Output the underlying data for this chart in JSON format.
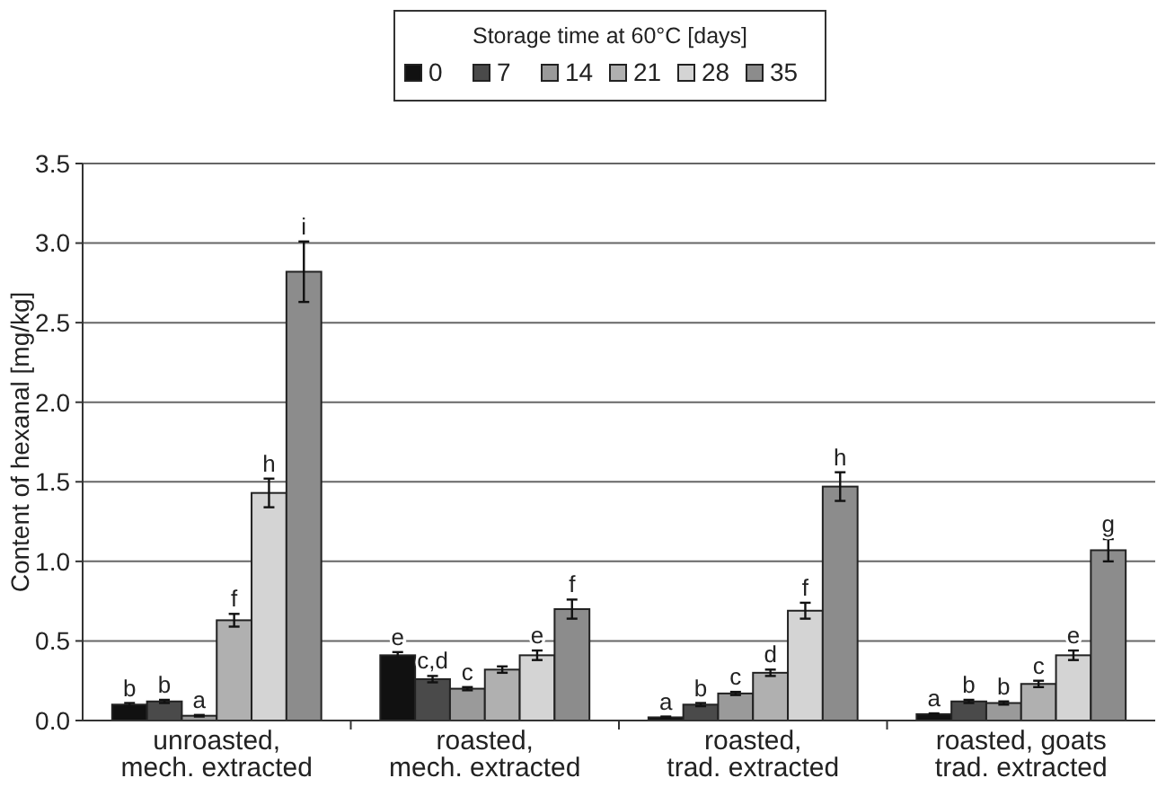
{
  "chart_data": {
    "type": "bar",
    "ylabel": "Content of hexanal [mg/kg]",
    "legend_title": "Storage time at 60°C [days]",
    "legend": "top",
    "grid": "y",
    "categories": [
      "unroasted,\nmech. extracted",
      "roasted,\nmech. extracted",
      "roasted,\ntrad. extracted",
      "roasted, goats\ntrad. extracted"
    ],
    "ylim": [
      0,
      3.5
    ],
    "yticks": [
      {
        "value": 0,
        "label": "0.0"
      },
      {
        "value": 0.5,
        "label": "0.5"
      },
      {
        "value": 1,
        "label": "1.0"
      },
      {
        "value": 1.5,
        "label": "1.5"
      },
      {
        "value": 2,
        "label": "2.0"
      },
      {
        "value": 2.5,
        "label": "2.5"
      },
      {
        "value": 3,
        "label": "3.0"
      },
      {
        "value": 3.5,
        "label": "3.5"
      }
    ],
    "series": [
      {
        "name": "0",
        "color": "#111111",
        "values": [
          0.1,
          0.41,
          0.02,
          0.04
        ],
        "errors": [
          0.01,
          0.02,
          0.005,
          0.005
        ],
        "value_labels": [
          "b",
          "e",
          "a",
          "a"
        ]
      },
      {
        "name": "7",
        "color": "#4a4a4a",
        "values": [
          0.12,
          0.26,
          0.1,
          0.12
        ],
        "errors": [
          0.01,
          0.02,
          0.01,
          0.01
        ],
        "value_labels": [
          "b",
          "c,d",
          "b",
          "b"
        ]
      },
      {
        "name": "14",
        "color": "#9a9a9a",
        "values": [
          0.03,
          0.2,
          0.17,
          0.11
        ],
        "errors": [
          0.005,
          0.01,
          0.01,
          0.01
        ],
        "value_labels": [
          "a",
          "c",
          "c",
          "b"
        ]
      },
      {
        "name": "21",
        "color": "#b0b0b0",
        "values": [
          0.63,
          0.32,
          0.3,
          0.23
        ],
        "errors": [
          0.04,
          0.02,
          0.02,
          0.02
        ],
        "value_labels": [
          "f",
          null,
          "d",
          "c"
        ]
      },
      {
        "name": "28",
        "color": "#d4d4d4",
        "values": [
          1.43,
          0.41,
          0.69,
          0.41
        ],
        "errors": [
          0.09,
          0.03,
          0.05,
          0.03
        ],
        "value_labels": [
          "h",
          "e",
          "f",
          "e"
        ]
      },
      {
        "name": "35",
        "color": "#8c8c8c",
        "values": [
          2.82,
          0.7,
          1.47,
          1.07
        ],
        "errors": [
          0.19,
          0.06,
          0.09,
          0.07
        ],
        "value_labels": [
          "i",
          "f",
          "h",
          "g"
        ]
      }
    ]
  }
}
